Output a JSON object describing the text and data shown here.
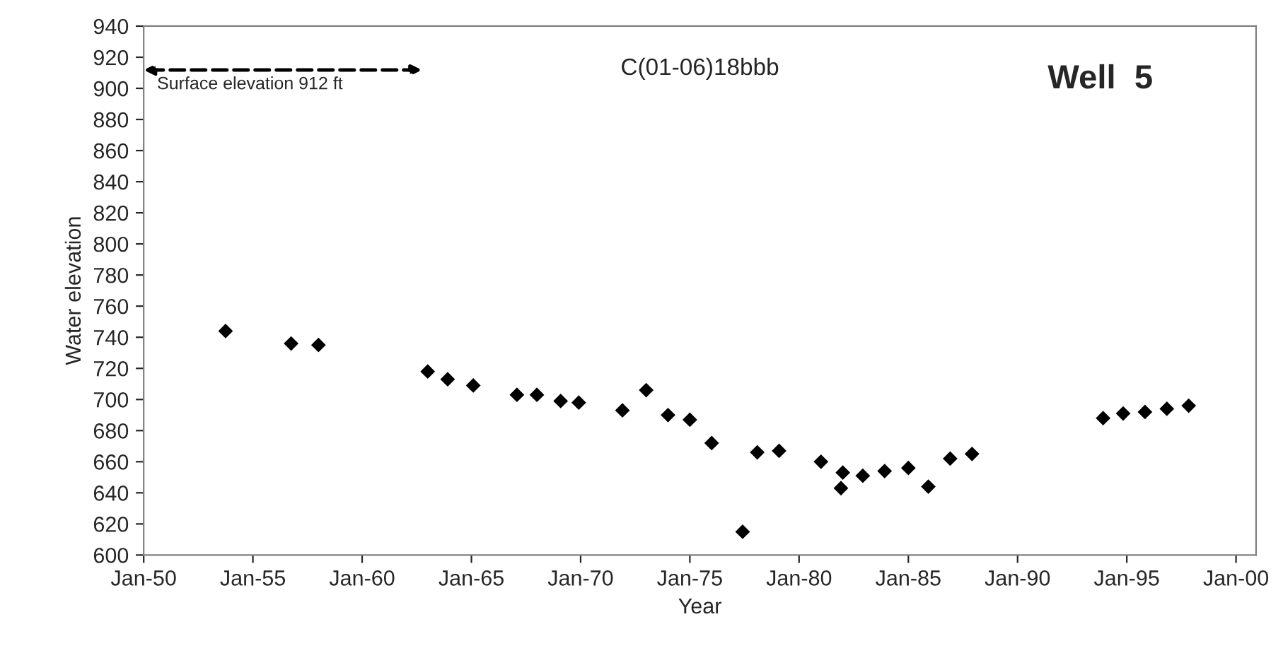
{
  "chart_data": {
    "type": "scatter",
    "title": "Well  5",
    "xlabel": "Year",
    "ylabel": "Water elevation",
    "annotations": [
      "Surface elevation 912 ft",
      "C(01-06)18bbb"
    ],
    "x": [
      "1953-10",
      "1956-10",
      "1958-01",
      "1963-01",
      "1963-12",
      "1965-02",
      "1967-02",
      "1968-01",
      "1969-02",
      "1969-12",
      "1971-12",
      "1973-01",
      "1974-01",
      "1975-01",
      "1976-01",
      "1977-06",
      "1978-02",
      "1979-02",
      "1981-01",
      "1982-01",
      "1981-12",
      "1982-12",
      "1983-12",
      "1985-01",
      "1985-12",
      "1986-12",
      "1987-12",
      "1993-12",
      "1994-11",
      "1995-11",
      "1996-11",
      "1997-11"
    ],
    "series": [
      {
        "color": "#000000",
        "values": [
          744,
          736,
          735,
          718,
          713,
          709,
          703,
          703,
          699,
          698,
          693,
          706,
          690,
          687,
          672,
          615,
          666,
          667,
          660,
          653,
          643,
          651,
          654,
          656,
          644,
          662,
          665,
          688,
          691,
          692,
          694,
          696
        ]
      }
    ],
    "marker": "diamond",
    "grid": false,
    "legend": false,
    "xlim": [
      "1950-01",
      "2000-12"
    ],
    "xticks": [
      {
        "value": "1950-01",
        "label": "Jan-50"
      },
      {
        "value": "1955-01",
        "label": "Jan-55"
      },
      {
        "value": "1960-01",
        "label": "Jan-60"
      },
      {
        "value": "1965-01",
        "label": "Jan-65"
      },
      {
        "value": "1970-01",
        "label": "Jan-70"
      },
      {
        "value": "1975-01",
        "label": "Jan-75"
      },
      {
        "value": "1980-01",
        "label": "Jan-80"
      },
      {
        "value": "1985-01",
        "label": "Jan-85"
      },
      {
        "value": "1990-01",
        "label": "Jan-90"
      },
      {
        "value": "1995-01",
        "label": "Jan-95"
      },
      {
        "value": "2000-01",
        "label": "Jan-00"
      }
    ],
    "ylim": [
      600,
      940
    ],
    "yticks": [
      600,
      620,
      640,
      660,
      680,
      700,
      720,
      740,
      760,
      780,
      800,
      820,
      840,
      860,
      880,
      900,
      920,
      940
    ]
  }
}
